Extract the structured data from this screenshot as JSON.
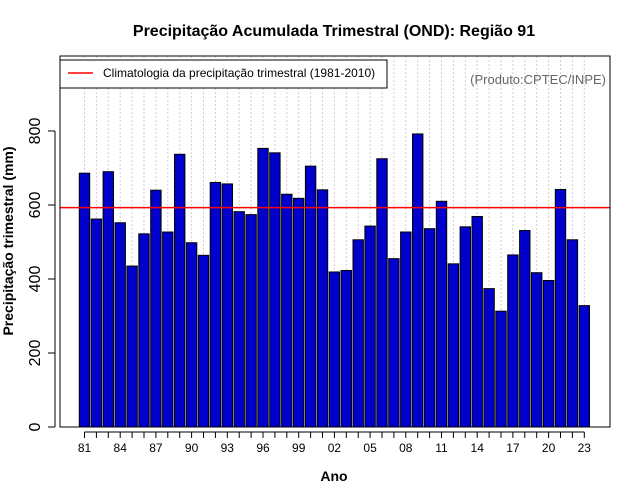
{
  "chart_data": {
    "type": "bar",
    "title": "Precipitação Acumulada Trimestral (OND): Região 91",
    "xlabel": "Ano",
    "ylabel": "Precipitação trimestral (mm)",
    "credit": "(Produto:CPTEC/INPE)",
    "ylim": [
      0,
      1000
    ],
    "yticks": [
      0,
      200,
      400,
      600,
      800
    ],
    "xtick_labels": [
      "81",
      "84",
      "87",
      "90",
      "93",
      "96",
      "99",
      "02",
      "05",
      "08",
      "11",
      "14",
      "17",
      "20",
      "23"
    ],
    "grid": true,
    "legend_position": "top-left",
    "series": [
      {
        "name": "Precipitação trimestral",
        "color": "#0000CD",
        "categories": [
          "1981",
          "1982",
          "1983",
          "1984",
          "1985",
          "1986",
          "1987",
          "1988",
          "1989",
          "1990",
          "1991",
          "1992",
          "1993",
          "1994",
          "1995",
          "1996",
          "1997",
          "1998",
          "1999",
          "2000",
          "2001",
          "2002",
          "2003",
          "2004",
          "2005",
          "2006",
          "2007",
          "2008",
          "2009",
          "2010",
          "2011",
          "2012",
          "2013",
          "2014",
          "2015",
          "2016",
          "2017",
          "2018",
          "2019",
          "2020",
          "2021",
          "2022",
          "2023"
        ],
        "values": [
          686,
          562,
          690,
          552,
          435,
          522,
          640,
          527,
          737,
          498,
          464,
          661,
          657,
          582,
          574,
          753,
          741,
          629,
          618,
          705,
          641,
          419,
          423,
          506,
          543,
          725,
          455,
          527,
          792,
          536,
          610,
          441,
          541,
          569,
          374,
          313,
          465,
          531,
          417,
          396,
          642,
          506,
          328
        ]
      }
    ],
    "reference_line": {
      "label": "Climatologia da precipitação trimestral (1981-2010)",
      "value": 593,
      "color": "#FF0000"
    }
  }
}
